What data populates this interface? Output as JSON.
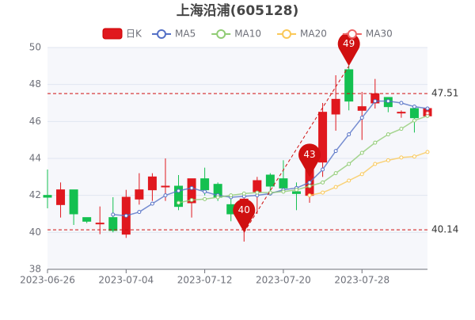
{
  "chart_data": {
    "type": "candlestick",
    "title": "上海沿浦(605128)",
    "categories": [
      "2023-06-26",
      null,
      null,
      null,
      null,
      null,
      "2023-07-04",
      null,
      null,
      null,
      null,
      null,
      "2023-07-12",
      null,
      null,
      null,
      null,
      null,
      "2023-07-20",
      null,
      null,
      null,
      null,
      null,
      "2023-07-28",
      null,
      null,
      null,
      null,
      null
    ],
    "candle_name": "日K",
    "up_color": "#e0181e",
    "down_color": "#14c050",
    "open": [
      42.0,
      41.5,
      42.3,
      40.8,
      40.5,
      40.8,
      39.9,
      41.8,
      42.3,
      42.5,
      42.5,
      41.6,
      42.9,
      42.6,
      41.5,
      41.0,
      42.2,
      43.1,
      42.9,
      42.2,
      42.0,
      43.8,
      46.4,
      48.8,
      46.6,
      47.0,
      47.3,
      46.5,
      46.7,
      46.3
    ],
    "close": [
      41.9,
      42.3,
      41.0,
      40.6,
      40.5,
      40.1,
      41.9,
      42.3,
      43.0,
      42.5,
      41.4,
      42.9,
      42.3,
      41.9,
      41.0,
      41.8,
      42.8,
      42.5,
      42.4,
      42.1,
      43.4,
      46.5,
      47.2,
      47.1,
      46.8,
      47.5,
      46.8,
      46.5,
      46.2,
      46.7
    ],
    "low": [
      41.3,
      40.8,
      40.4,
      40.5,
      39.9,
      40.0,
      39.7,
      41.5,
      41.7,
      41.7,
      41.2,
      40.8,
      42.0,
      41.7,
      40.6,
      39.5,
      41.0,
      42.0,
      42.1,
      41.2,
      41.6,
      43.0,
      45.5,
      46.6,
      45.0,
      46.7,
      46.5,
      46.2,
      45.4,
      46.2
    ],
    "high": [
      43.4,
      42.7,
      42.3,
      40.8,
      41.4,
      41.9,
      42.3,
      43.2,
      43.2,
      44.0,
      43.1,
      42.9,
      43.5,
      42.7,
      41.9,
      42.0,
      43.0,
      43.2,
      43.9,
      42.7,
      44.3,
      47.0,
      48.5,
      49.0,
      47.6,
      48.3,
      47.3,
      46.6,
      46.9,
      46.8
    ],
    "series": [
      {
        "name": "MA5",
        "color": "#5470c6",
        "values": [
          null,
          null,
          null,
          null,
          null,
          40.96,
          40.9,
          41.1,
          41.55,
          42.0,
          42.25,
          42.4,
          42.2,
          42.0,
          41.9,
          41.95,
          42.0,
          42.1,
          42.3,
          42.4,
          42.7,
          43.4,
          44.4,
          45.3,
          46.2,
          47.1,
          47.1,
          47.0,
          46.8,
          46.7
        ]
      },
      {
        "name": "MA10",
        "color": "#91cc75",
        "values": [
          null,
          null,
          null,
          null,
          null,
          null,
          null,
          null,
          null,
          null,
          41.6,
          41.75,
          41.8,
          41.9,
          42.0,
          42.1,
          42.15,
          42.15,
          42.2,
          42.3,
          42.5,
          42.7,
          43.2,
          43.7,
          44.3,
          44.85,
          45.3,
          45.6,
          46.05,
          46.3
        ]
      },
      {
        "name": "MA20",
        "color": "#fac858",
        "values": [
          null,
          null,
          null,
          null,
          null,
          null,
          null,
          null,
          null,
          null,
          null,
          null,
          null,
          null,
          null,
          null,
          null,
          null,
          null,
          null,
          42.0,
          42.15,
          42.45,
          42.8,
          43.15,
          43.7,
          43.9,
          44.05,
          44.1,
          44.35
        ]
      },
      {
        "name": "MA30",
        "color": "#ee6666",
        "values": [
          null,
          null,
          null,
          null,
          null,
          null,
          null,
          null,
          null,
          null,
          null,
          null,
          null,
          null,
          null,
          null,
          null,
          null,
          null,
          null,
          null,
          null,
          null,
          null,
          null,
          null,
          null,
          null,
          null,
          46.45
        ]
      }
    ],
    "mark_points": [
      {
        "at": 15,
        "value": 40
      },
      {
        "at": 20,
        "value": 43
      },
      {
        "at": 23,
        "value": 49
      }
    ],
    "mark_lines": [
      47.51,
      40.14
    ],
    "mark_color": "#d01010",
    "ylim": [
      38,
      50
    ],
    "yticks": [
      38,
      40,
      42,
      44,
      46,
      48,
      50
    ],
    "grid": true
  }
}
